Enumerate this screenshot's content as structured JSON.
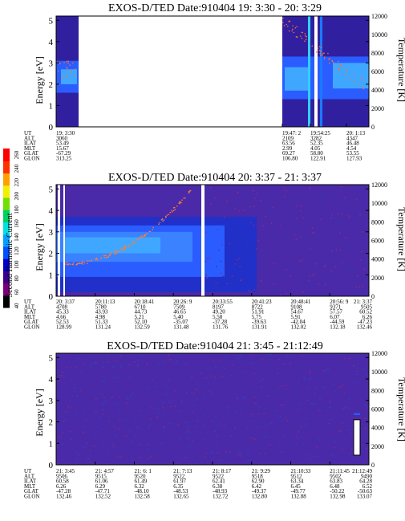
{
  "figure": {
    "colorbar": {
      "label": "Second Harmonic Current",
      "ticks": [
        "40",
        "60",
        "80",
        "100",
        "120",
        "140",
        "160",
        "180",
        "200",
        "220",
        "240",
        "260"
      ],
      "colors": [
        "#000000",
        "#7a007a",
        "#3a0090",
        "#0000c8",
        "#0050ff",
        "#00a0ff",
        "#00e0e0",
        "#00d060",
        "#70e000",
        "#f0f000",
        "#ffa000",
        "#ff3000",
        "#ff0000"
      ]
    }
  },
  "chart_data": [
    {
      "type": "heatmap",
      "title": "EXOS-D/TED   Date:910404  19: 3:30 - 20: 3:29",
      "ylabel": "Energy [eV]",
      "y2label": "Temperature [K]",
      "ylim": [
        0,
        5.2
      ],
      "y2lim": [
        0,
        12000
      ],
      "yticks": [
        "0",
        "1",
        "2",
        "3",
        "4",
        "5"
      ],
      "y2ticks": [
        "0",
        "2000",
        "4000",
        "6000",
        "8000",
        "10000",
        "12000"
      ],
      "ephemeris": {
        "labels": [
          "UT",
          "ALT",
          "ILAT",
          "MLT",
          "GLAT",
          "GLON"
        ],
        "columns": [
          [
            "19: 3:30",
            "3060",
            "53.49",
            "15.67",
            "-67.29",
            "313.25"
          ],
          [
            "19:47: 2",
            "2109",
            "63.56",
            "2.99",
            "69.27",
            "106.80"
          ],
          [
            "19:54:25",
            "3282",
            "52.35",
            "4.05",
            "58.80",
            "122.91"
          ],
          [
            "20: 1:13",
            "4347",
            "46.48",
            "4.54",
            "53.55",
            "127.93"
          ]
        ]
      }
    },
    {
      "type": "heatmap",
      "title": "EXOS-D/TED   Date:910404  20: 3:37 - 21: 3:37",
      "ylabel": "Energy [eV]",
      "y2label": "Temperature [K]",
      "ylim": [
        0,
        5.2
      ],
      "y2lim": [
        0,
        12000
      ],
      "yticks": [
        "0",
        "1",
        "2",
        "3",
        "4",
        "5"
      ],
      "y2ticks": [
        "0",
        "2000",
        "4000",
        "6000",
        "8000",
        "10000",
        "12000"
      ],
      "ephemeris": {
        "labels": [
          "UT",
          "ALT",
          "ILAT",
          "MLT",
          "GLAT",
          "GLON"
        ],
        "columns": [
          [
            "20: 3:37",
            "4708",
            "45.33",
            "4.66",
            "52.53",
            "128.99"
          ],
          [
            "20:11:13",
            "5780",
            "43.93",
            "4.98",
            "51.33",
            "131.24"
          ],
          [
            "20:18:41",
            "6710",
            "44.73",
            "5.21",
            "52.10",
            "132.59"
          ],
          [
            "20:26: 9",
            "7509",
            "46.65",
            "5.40",
            "-35.07",
            "131.48"
          ],
          [
            "20:33:55",
            "8197",
            "49.20",
            "5.58",
            "-37.28",
            "131.76"
          ],
          [
            "20:41:23",
            "8722",
            "51.91",
            "5.75",
            "-39.63",
            "131.91"
          ],
          [
            "20:48:41",
            "9108",
            "54.67",
            "5.91",
            "-42.04",
            "132.02"
          ],
          [
            "20:56: 9",
            "9371",
            "57.57",
            "6.07",
            "-44.59",
            "132.18"
          ],
          [
            "21: 3:37",
            "9505",
            "60.52",
            "6.26",
            "-47.23",
            "132.46"
          ]
        ]
      }
    },
    {
      "type": "heatmap",
      "title": "EXOS-D/TED   Date:910404  21: 3:45 - 21:12:49",
      "ylabel": "Energy [eV]",
      "y2label": "Temperature [K]",
      "ylim": [
        0,
        5.2
      ],
      "y2lim": [
        0,
        12000
      ],
      "yticks": [
        "0",
        "1",
        "2",
        "3",
        "4",
        "5"
      ],
      "y2ticks": [
        "0",
        "2000",
        "4000",
        "6000",
        "8000",
        "10000",
        "12000"
      ],
      "ephemeris": {
        "labels": [
          "UT",
          "ALT",
          "ILAT",
          "MLT",
          "GLAT",
          "GLON"
        ],
        "columns": [
          [
            "21: 3:45",
            "9506",
            "60.58",
            "6.26",
            "-47.28",
            "132.46"
          ],
          [
            "21: 4:57",
            "9515",
            "61.06",
            "6.29",
            "-47.71",
            "132.52"
          ],
          [
            "21: 6: 1",
            "9520",
            "61.49",
            "6.32",
            "-48.10",
            "132.58"
          ],
          [
            "21: 7:13",
            "9522",
            "61.97",
            "6.35",
            "-48.53",
            "132.65"
          ],
          [
            "21: 8:17",
            "9522",
            "62.41",
            "6.38",
            "-48.93",
            "132.72"
          ],
          [
            "21: 9:29",
            "9518",
            "62.90",
            "6.42",
            "-49.37",
            "132.80"
          ],
          [
            "21:10:33",
            "9512",
            "63.34",
            "6.45",
            "-49.77",
            "132.88"
          ],
          [
            "21:11:45",
            "9502",
            "63.83",
            "6.48",
            "-50.22",
            "132.98"
          ],
          [
            "21:12:49",
            "9490",
            "64.28",
            "6.52",
            "-50.63",
            "133.07"
          ]
        ]
      }
    }
  ]
}
